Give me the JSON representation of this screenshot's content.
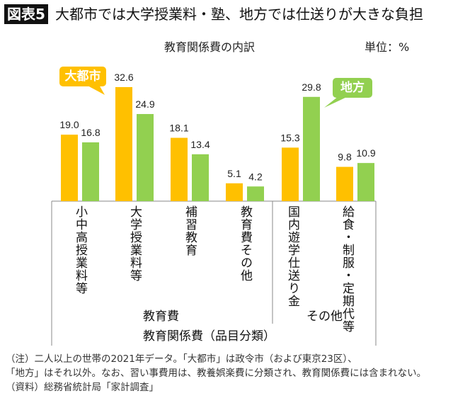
{
  "header": {
    "figure_label": "図表5",
    "headline": "大都市では大学授業料・塾、地方では仕送りが大きな負担"
  },
  "chart_data": {
    "type": "bar",
    "title": "教育関係費の内訳",
    "unit": "単位：%",
    "categories": [
      {
        "columns": [
          "小中高授業料等"
        ]
      },
      {
        "columns": [
          "大学授業料等"
        ]
      },
      {
        "columns": [
          "補習教育"
        ]
      },
      {
        "columns": [
          "教育費その他"
        ]
      },
      {
        "columns": [
          "国内遊学",
          "仕送り金"
        ]
      },
      {
        "columns": [
          "給食・制服",
          "・定期代等"
        ]
      }
    ],
    "series": [
      {
        "name": "大都市",
        "color": "#FFC000",
        "values": [
          19.0,
          32.6,
          18.1,
          5.1,
          15.3,
          9.8
        ]
      },
      {
        "name": "地方",
        "color": "#92D050",
        "values": [
          16.8,
          24.9,
          13.4,
          4.2,
          29.8,
          10.9
        ]
      }
    ],
    "groups": [
      "教育費",
      "その他"
    ],
    "xlabel": "教育関係費（品目分類）",
    "legend": "callouts"
  },
  "notes": [
    "（注）二人以上の世帯の2021年データ。「大都市」は政令市（および東京23区）、",
    "「地方」はそれ以外。なお、習い事費用は、教養娯楽費に分類され、教育関係費には含まれない。",
    "（資料）総務省統計局「家計調査」"
  ]
}
